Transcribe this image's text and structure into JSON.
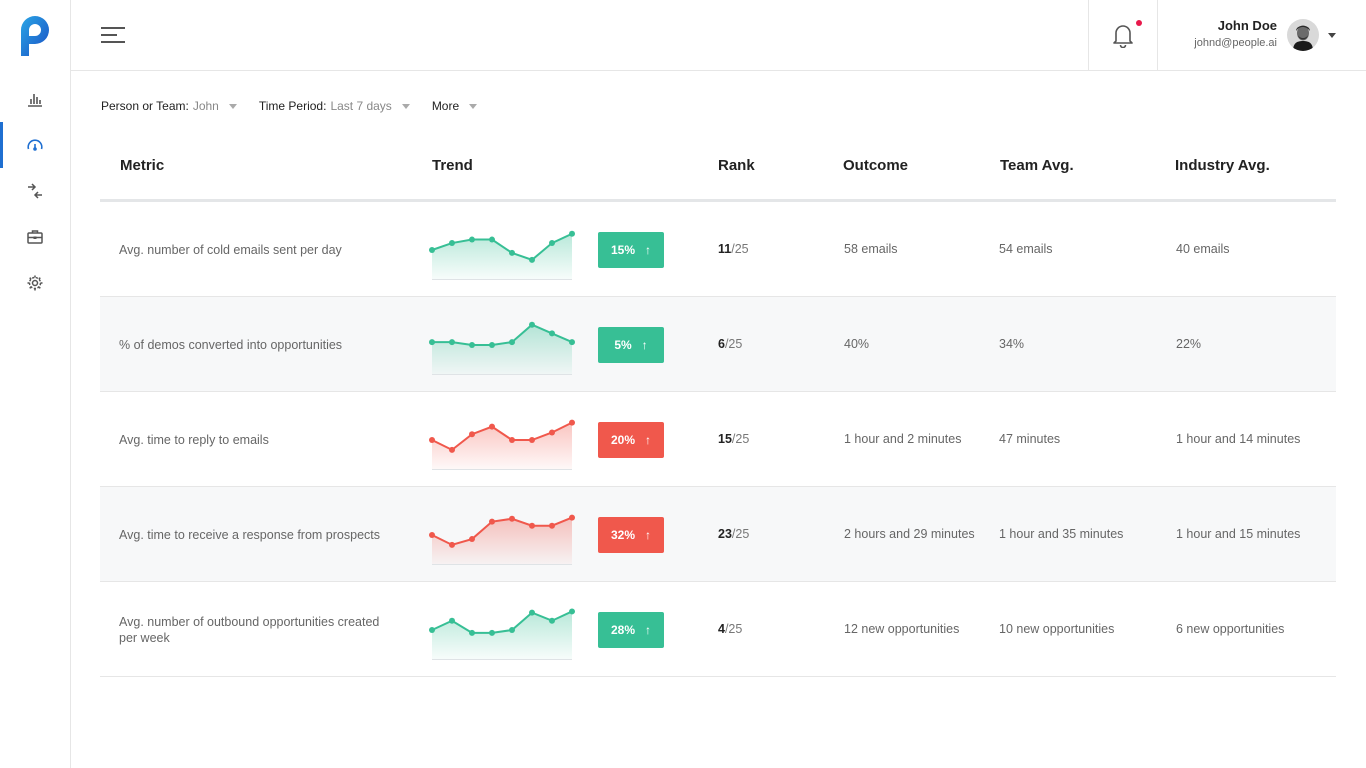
{
  "colors": {
    "brand": "#1f6fd1",
    "positive": "#37bf95",
    "negative": "#f0584c",
    "notification_dot": "#e8194b"
  },
  "sidebar": {
    "items": [
      {
        "icon": "bar-chart-icon",
        "active": false
      },
      {
        "icon": "gauge-icon",
        "active": true
      },
      {
        "icon": "arrows-merge-icon",
        "active": false
      },
      {
        "icon": "briefcase-icon",
        "active": false
      },
      {
        "icon": "gear-icon",
        "active": false
      }
    ]
  },
  "header": {
    "user_name": "John Doe",
    "user_email": "johnd@people.ai",
    "has_notification": true
  },
  "filters": [
    {
      "label": "Person or Team:",
      "value": "John"
    },
    {
      "label": "Time Period:",
      "value": "Last 7 days"
    },
    {
      "label": "More",
      "value": ""
    }
  ],
  "table": {
    "headers": {
      "metric": "Metric",
      "trend": "Trend",
      "rank": "Rank",
      "outcome": "Outcome",
      "team": "Team Avg.",
      "industry": "Industry Avg."
    },
    "rows": [
      {
        "metric": "Avg. number of cold emails sent per day",
        "trend": [
          50,
          62,
          68,
          68,
          45,
          33,
          62,
          78
        ],
        "change": "15%",
        "direction": "positive",
        "rank": "11",
        "rank_total": "/25",
        "outcome": "58 emails",
        "team": "54 emails",
        "industry": "40 emails"
      },
      {
        "metric": "% of demos converted into opportunities",
        "trend": [
          55,
          55,
          50,
          50,
          55,
          85,
          70,
          55
        ],
        "change": "5%",
        "direction": "positive",
        "rank": "6",
        "rank_total": "/25",
        "outcome": "40%",
        "team": "34%",
        "industry": "22%"
      },
      {
        "metric": "Avg. time to reply to emails",
        "trend": [
          50,
          33,
          60,
          73,
          50,
          50,
          63,
          80
        ],
        "change": "20%",
        "direction": "negative",
        "rank": "15",
        "rank_total": "/25",
        "outcome": "1 hour and 2 minutes",
        "team": "47 minutes",
        "industry": "1 hour and 14 minutes"
      },
      {
        "metric": "Avg. time to receive a response from prospects",
        "trend": [
          50,
          33,
          43,
          73,
          78,
          66,
          66,
          80
        ],
        "change": "32%",
        "direction": "negative",
        "rank": "23",
        "rank_total": "/25",
        "outcome": "2 hours and 29 minutes",
        "team": "1 hour and 35 minutes",
        "industry": "1 hour and 15 minutes"
      },
      {
        "metric": "Avg. number of outbound opportunities created per week",
        "trend": [
          50,
          66,
          45,
          45,
          50,
          80,
          66,
          82
        ],
        "change": "28%",
        "direction": "positive",
        "rank": "4",
        "rank_total": "/25",
        "outcome": "12 new opportunities",
        "team": "10 new opportunities",
        "industry": "6 new opportunities"
      }
    ]
  }
}
